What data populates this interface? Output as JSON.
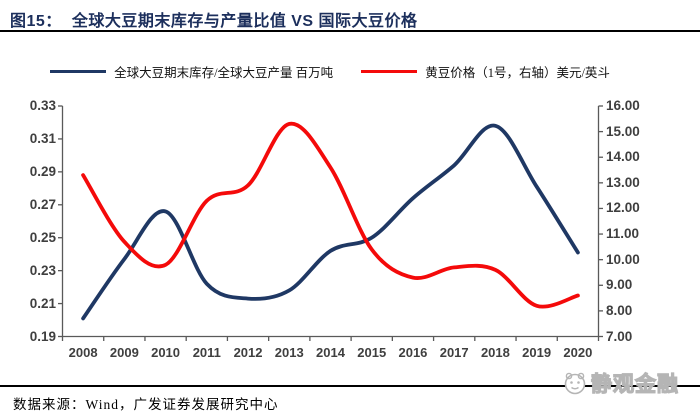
{
  "title": {
    "number": "图15：",
    "text": "全球大豆期末库存与产量比值 VS 国际大豆价格"
  },
  "legend": {
    "items": [
      {
        "label": "全球大豆期末库存/全球大豆产量 百万吨",
        "color": "#1f3864"
      },
      {
        "label": "黄豆价格（1号，右轴）美元/英斗",
        "color": "#f40a0a"
      }
    ]
  },
  "chart_data": {
    "type": "line",
    "smooth": true,
    "grid": false,
    "legend_position": "top",
    "categories": [
      "2008",
      "2009",
      "2010",
      "2011",
      "2012",
      "2013",
      "2014",
      "2015",
      "2016",
      "2017",
      "2018",
      "2019",
      "2020"
    ],
    "series": [
      {
        "name": "全球大豆期末库存/全球大豆产量 百万吨",
        "axis": "left",
        "color": "#1f3864",
        "values": [
          0.201,
          0.237,
          0.266,
          0.222,
          0.213,
          0.218,
          0.242,
          0.25,
          0.274,
          0.294,
          0.318,
          0.281,
          0.241
        ]
      },
      {
        "name": "黄豆价格（1号，右轴）美元/英斗",
        "axis": "right",
        "color": "#f40a0a",
        "values": [
          13.3,
          10.7,
          9.8,
          12.3,
          12.9,
          15.3,
          13.6,
          10.4,
          9.3,
          9.7,
          9.6,
          8.2,
          8.6
        ]
      }
    ],
    "left_axis": {
      "min": 0.19,
      "max": 0.33,
      "step": 0.02,
      "tick_labels": [
        "0.33",
        "0.31",
        "0.29",
        "0.27",
        "0.25",
        "0.23",
        "0.21",
        "0.19"
      ]
    },
    "right_axis": {
      "min": 7,
      "max": 16,
      "step": 1,
      "tick_labels": [
        "16.00",
        "15.00",
        "14.00",
        "13.00",
        "12.00",
        "11.00",
        "10.00",
        "9.00",
        "8.00",
        "7.00"
      ]
    },
    "axis_color": "#595959"
  },
  "footer": {
    "source": "数据来源：Wind，广发证券发展研究中心"
  },
  "watermark": {
    "text": "静观金融",
    "logo": "panda-face-icon"
  }
}
